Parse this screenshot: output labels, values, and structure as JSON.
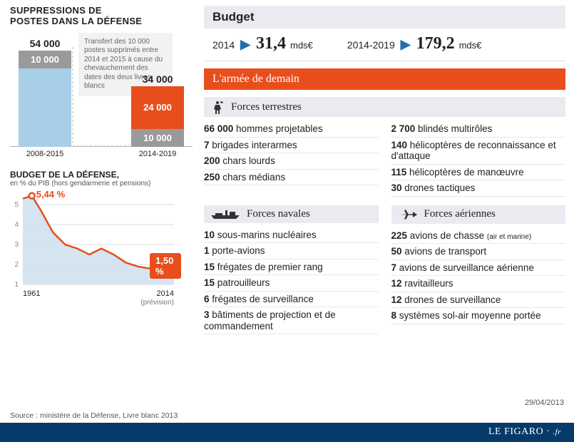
{
  "left": {
    "suppress_title_l1": "SUPPRESSIONS DE",
    "suppress_title_l2": "POSTES DANS LA DÉFENSE",
    "bar_chart": {
      "type": "bar-stacked",
      "colors": {
        "blue": "#a7cfe8",
        "grey": "#9a9a9a",
        "orange": "#e84e1b",
        "white_text": "#ffffff"
      },
      "bar1": {
        "label": "2008-2015",
        "total": "54 000",
        "top_seg": "10 000",
        "top_h": 25,
        "bottom_h": 110,
        "x": 12
      },
      "bar2": {
        "label": "2014-2019",
        "total": "34 000",
        "top_seg": "24 000",
        "bottom_seg": "10 000",
        "top_h": 60,
        "bottom_h": 25,
        "x": 170
      },
      "callout": "Transfert des 10 000 postes supprimés entre 2014 et 2015 à cause du chevauchement des dates des deux livres blancs"
    },
    "line_title": "BUDGET DE LA DÉFENSE,",
    "line_sub": "en % du PIB (hors gendarmerie et pensions)",
    "line_chart": {
      "type": "line+area",
      "ylim": [
        1,
        5.5
      ],
      "yticks": [
        "1",
        "2",
        "3",
        "4",
        "5"
      ],
      "xmin_label": "1961",
      "xmax_label": "2014",
      "prevision": "(prévision)",
      "start_label": "5,44 %",
      "end_label": "1,50 %",
      "line_color": "#e84e1b",
      "fill_color": "#cfe2ef",
      "points": [
        [
          0,
          5.3
        ],
        [
          6,
          5.44
        ],
        [
          12,
          4.7
        ],
        [
          20,
          3.6
        ],
        [
          28,
          3.0
        ],
        [
          36,
          2.8
        ],
        [
          44,
          2.5
        ],
        [
          52,
          2.8
        ],
        [
          60,
          2.5
        ],
        [
          68,
          2.1
        ],
        [
          76,
          1.9
        ],
        [
          84,
          1.8
        ],
        [
          92,
          1.7
        ],
        [
          100,
          1.5
        ]
      ]
    }
  },
  "right": {
    "budget_hd": "Budget",
    "budget": [
      {
        "year": "2014",
        "value": "31,4",
        "unit": "mds€"
      },
      {
        "year": "2014-2019",
        "value": "179,2",
        "unit": "mds€"
      }
    ],
    "army_hd": "L'armée de demain",
    "terrestres": {
      "title": "Forces terrestres",
      "col1": [
        {
          "n": "66 000",
          "t": "hommes projetables"
        },
        {
          "n": "7",
          "t": "brigades interarmes"
        },
        {
          "n": "200",
          "t": "chars lourds"
        },
        {
          "n": "250",
          "t": "chars médians"
        }
      ],
      "col2": [
        {
          "n": "2 700",
          "t": "blindés multirôles"
        },
        {
          "n": "140",
          "t": "hélicoptères de reconnaissance et d'attaque"
        },
        {
          "n": "115",
          "t": "hélicoptères de manœuvre"
        },
        {
          "n": "30",
          "t": "drones tactiques"
        }
      ]
    },
    "navales": {
      "title": "Forces navales",
      "items": [
        {
          "n": "10",
          "t": "sous-marins nucléaires"
        },
        {
          "n": "1",
          "t": "porte-avions"
        },
        {
          "n": "15",
          "t": "frégates de premier rang"
        },
        {
          "n": "15",
          "t": "patrouilleurs"
        },
        {
          "n": "6",
          "t": "frégates de surveillance"
        },
        {
          "n": "3",
          "t": "bâtiments de projection et de commandement"
        }
      ]
    },
    "aeriennes": {
      "title": "Forces aériennes",
      "items": [
        {
          "n": "225",
          "t": "avions de chasse",
          "suffix": "(air et marine)"
        },
        {
          "n": "50",
          "t": "avions de transport"
        },
        {
          "n": "7",
          "t": "avions de surveillance aérienne"
        },
        {
          "n": "12",
          "t": "ravitailleurs"
        },
        {
          "n": "12",
          "t": "drones de surveillance"
        },
        {
          "n": "8",
          "t": "systèmes sol-air moyenne portée"
        }
      ]
    }
  },
  "footer": {
    "source": "Source : ministère de la Défense, Livre blanc 2013",
    "date": "29/04/2013",
    "brand": "LE FIGARO",
    "brand_suffix": ".fr"
  }
}
